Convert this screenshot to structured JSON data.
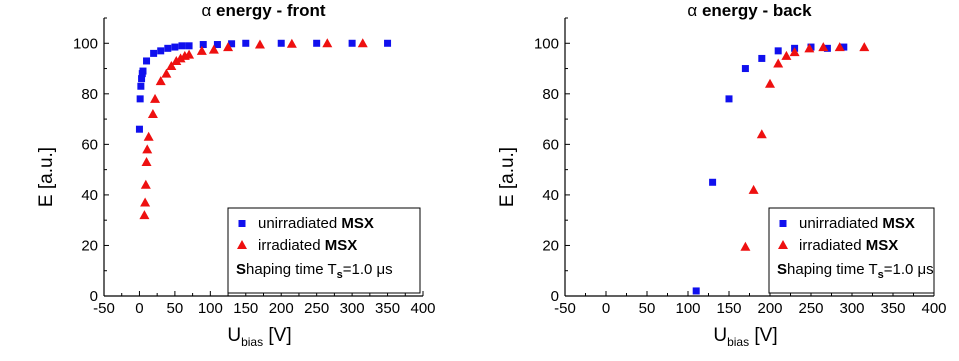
{
  "chart_data": [
    {
      "type": "scatter",
      "title_symbol": "α",
      "title_text": " energy - front",
      "xlabel_main": "U",
      "xlabel_sub": "bias",
      "xlabel_unit": " [V]",
      "ylabel": "E [a.u.]",
      "xlim": [
        -50,
        400
      ],
      "ylim": [
        0,
        110
      ],
      "xticks": [
        -50,
        0,
        50,
        100,
        150,
        200,
        250,
        300,
        350,
        400
      ],
      "yticks": [
        0,
        20,
        40,
        60,
        80,
        100
      ],
      "grid": false,
      "legend_position": "bottom-right",
      "legend": {
        "entries": [
          {
            "plain": "unirradiated ",
            "bold": "MSX"
          },
          {
            "plain": "irradiated ",
            "bold": "MSX"
          }
        ],
        "note_bold": "S",
        "note_text": "haping time T",
        "note_sub": "s",
        "note_value": "=1.0 μs"
      },
      "series": [
        {
          "marker": "square",
          "color": "#1010ee",
          "points": [
            [
              0,
              66
            ],
            [
              1,
              78
            ],
            [
              2,
              83
            ],
            [
              3,
              86
            ],
            [
              4,
              88
            ],
            [
              5,
              89
            ],
            [
              10,
              93
            ],
            [
              20,
              96
            ],
            [
              30,
              97
            ],
            [
              40,
              98
            ],
            [
              50,
              98.5
            ],
            [
              60,
              99
            ],
            [
              70,
              99
            ],
            [
              90,
              99.5
            ],
            [
              110,
              99.5
            ],
            [
              130,
              99.8
            ],
            [
              150,
              100
            ],
            [
              200,
              100
            ],
            [
              250,
              100
            ],
            [
              300,
              100
            ],
            [
              350,
              100
            ]
          ]
        },
        {
          "marker": "triangle",
          "color": "#ee1010",
          "points": [
            [
              7,
              32
            ],
            [
              8,
              37
            ],
            [
              9,
              44
            ],
            [
              10,
              53
            ],
            [
              11,
              58
            ],
            [
              13,
              63
            ],
            [
              19,
              72
            ],
            [
              22,
              78
            ],
            [
              30,
              85
            ],
            [
              38,
              88
            ],
            [
              45,
              91
            ],
            [
              52,
              93
            ],
            [
              58,
              94
            ],
            [
              64,
              95
            ],
            [
              70,
              95.5
            ],
            [
              88,
              97
            ],
            [
              105,
              97.5
            ],
            [
              125,
              98.5
            ],
            [
              170,
              99.5
            ],
            [
              215,
              99.8
            ],
            [
              265,
              100
            ],
            [
              315,
              100
            ]
          ]
        }
      ]
    },
    {
      "type": "scatter",
      "title_symbol": "α",
      "title_text": " energy - back",
      "xlabel_main": "U",
      "xlabel_sub": "bias",
      "xlabel_unit": " [V]",
      "ylabel": "E [a.u.]",
      "xlim": [
        -50,
        400
      ],
      "ylim": [
        0,
        110
      ],
      "xticks": [
        -50,
        0,
        50,
        100,
        150,
        200,
        250,
        300,
        350,
        400
      ],
      "yticks": [
        0,
        20,
        40,
        60,
        80,
        100
      ],
      "grid": false,
      "legend_position": "bottom-right",
      "legend": {
        "entries": [
          {
            "plain": "unirradiated ",
            "bold": "MSX"
          },
          {
            "plain": "irradiated ",
            "bold": "MSX"
          }
        ],
        "note_bold": "S",
        "note_text": "haping time T",
        "note_sub": "s",
        "note_value": "=1.0 μs"
      },
      "series": [
        {
          "marker": "square",
          "color": "#1010ee",
          "points": [
            [
              110,
              2
            ],
            [
              130,
              45
            ],
            [
              150,
              78
            ],
            [
              170,
              90
            ],
            [
              190,
              94
            ],
            [
              210,
              97
            ],
            [
              230,
              98
            ],
            [
              250,
              98.5
            ],
            [
              270,
              98
            ],
            [
              290,
              98.5
            ]
          ]
        },
        {
          "marker": "triangle",
          "color": "#ee1010",
          "points": [
            [
              170,
              19.5
            ],
            [
              180,
              42
            ],
            [
              190,
              64
            ],
            [
              200,
              84
            ],
            [
              210,
              92
            ],
            [
              220,
              95
            ],
            [
              230,
              96.5
            ],
            [
              248,
              98
            ],
            [
              265,
              98.5
            ],
            [
              285,
              98.5
            ],
            [
              315,
              98.5
            ]
          ]
        }
      ]
    }
  ]
}
